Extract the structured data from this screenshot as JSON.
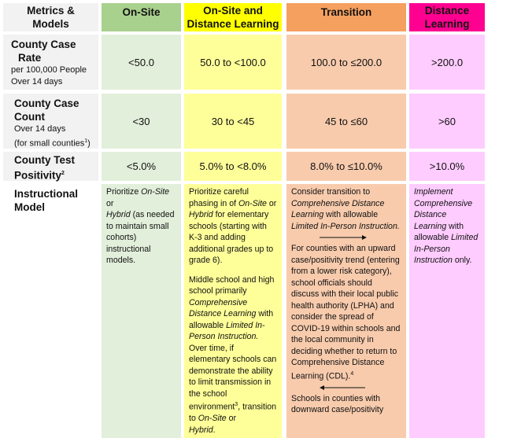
{
  "headers": {
    "metrics": "Metrics & Models",
    "onsite": "On-Site",
    "onsite_distance": "On-Site and Distance Learning",
    "transition": "Transition",
    "distance": "Distance Learning"
  },
  "rows": {
    "case_rate": {
      "label": "County Case Rate",
      "sub1": "per 100,000 People",
      "sub2": "Over 14 days",
      "values": [
        "<50.0",
        "50.0 to <100.0",
        "100.0 to ≤200.0",
        ">200.0"
      ]
    },
    "case_count": {
      "label": "County Case Count",
      "sub1": "Over 14 days",
      "sub2": "(for small counties",
      "sub2_sup": "1",
      "sub2_end": ")",
      "values": [
        "<30",
        "30 to <45",
        "45 to ≤60",
        ">60"
      ]
    },
    "positivity": {
      "label": "County Test Positivity",
      "label_sup": "2",
      "values": [
        "<5.0%",
        "5.0% to <8.0%",
        "8.0% to ≤10.0%",
        ">10.0%"
      ]
    },
    "instructional": {
      "label": "Instructional Model"
    }
  },
  "instructional_text": {
    "onsite": {
      "t1": "Prioritize ",
      "i1": "On-Site",
      "t2": "or",
      "i2": "Hybrid",
      "t3": " (as needed to maintain small cohorts) instructional models."
    },
    "onsite_distance": {
      "p1_t1": "Prioritize careful phasing in of ",
      "p1_i1": "On-Site",
      "p1_t2": " or ",
      "p1_i2": "Hybrid",
      "p1_t3": " for elementary schools (starting with K-3 and adding additional grades up to grade 6).",
      "p2_t1": "Middle school and high school primarily ",
      "p2_i1": "Comprehensive Distance Learning",
      "p2_t2": " with allowable ",
      "p2_i2": "Limited In-Person Instruction.",
      "p2_t3": " Over time, if elementary schools can demonstrate the ability to limit transmission in the school environment",
      "p2_sup": "3",
      "p2_t4": ", transition to ",
      "p2_i3": "On-Site",
      "p2_t5": " or",
      "p2_i4": "Hybrid",
      "p2_t6": "."
    },
    "transition": {
      "p1_t1": "Consider transition to ",
      "p1_i1": "Comprehensive Distance Learning",
      "p1_t2": " with allowable ",
      "p1_i2": "Limited In-Person Instruction.",
      "p2": "For counties with an upward case/positivity trend (entering from a lower risk category), school officials should discuss with their local public health authority (LPHA) and consider the spread of COVID-19 within schools and the local community in deciding whether to return to Comprehensive Distance Learning (CDL).",
      "p2_sup": "4",
      "p3": "Schools in counties with downward case/positivity"
    },
    "distance": {
      "i1": "Implement Comprehensive Distance Learning",
      "t1": " with allowable ",
      "i2": "Limited In-Person Instruction",
      "t2": " only."
    }
  }
}
